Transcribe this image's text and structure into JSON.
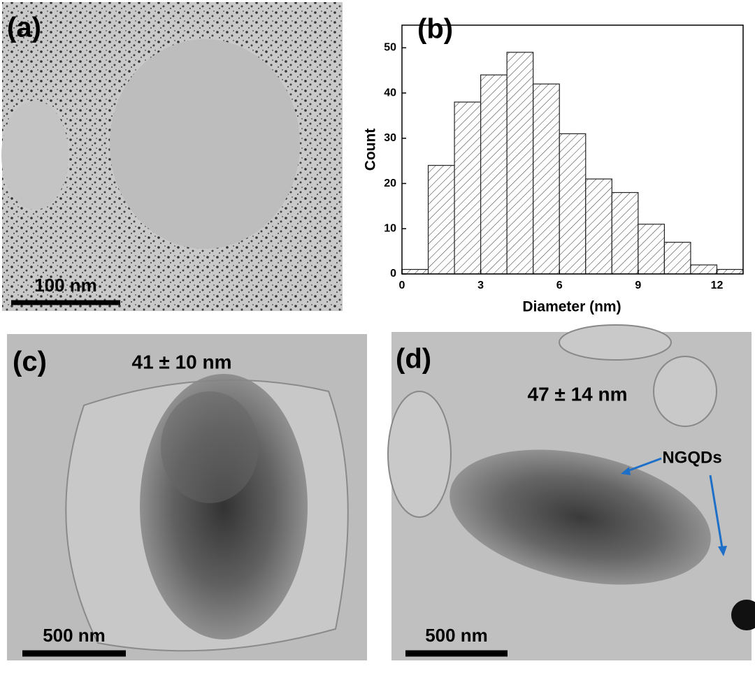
{
  "chart_data": {
    "type": "histogram",
    "panel_label": "(b)",
    "xlabel": "Diameter (nm)",
    "ylabel": "Count",
    "bins": [
      0,
      1,
      2,
      3,
      4,
      5,
      6,
      7,
      8,
      9,
      10,
      11,
      12,
      13
    ],
    "values": [
      1,
      24,
      38,
      44,
      49,
      42,
      31,
      21,
      18,
      11,
      7,
      2,
      1
    ],
    "xlim": [
      0,
      13
    ],
    "ylim": [
      0,
      55
    ],
    "xticks": [
      0,
      3,
      6,
      9,
      12
    ],
    "yticks": [
      0,
      10,
      20,
      30,
      40,
      50
    ]
  },
  "images": [
    {
      "label": "(a)",
      "scale_bar": "100 nm"
    },
    {
      "label": "(c)",
      "annotation": "41 ± 10 nm",
      "scale_bar": "500 nm"
    },
    {
      "label": "(d)",
      "annotation": "47 ± 14 nm",
      "scale_bar": "500 nm",
      "callout": "NGQDs"
    }
  ]
}
